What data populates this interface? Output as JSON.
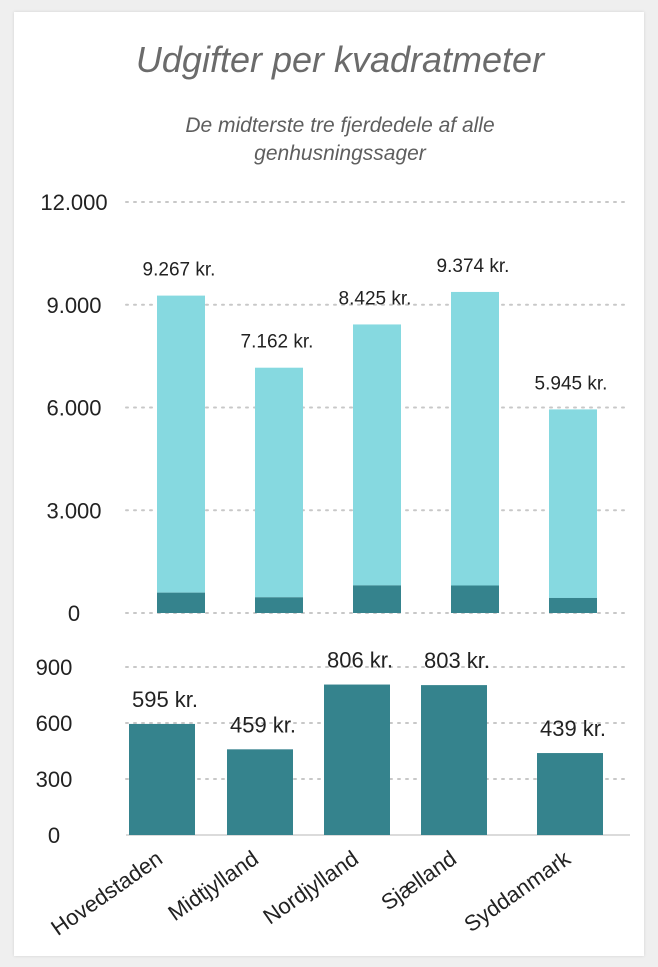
{
  "title": "Udgifter per kvadratmeter",
  "subtitle_line1": "De midterste tre fjerdedele af alle",
  "subtitle_line2": "genhusningssager",
  "colors": {
    "upper": "#86d9e0",
    "lower": "#35838d"
  },
  "chart_data": [
    {
      "type": "bar",
      "stacked": true,
      "title": "Udgifter per kvadratmeter",
      "subtitle": "De midterste tre fjerdedele af alle genhusningssager",
      "categories": [
        "Hovedstaden",
        "Midtjylland",
        "Nordjylland",
        "Sjælland",
        "Syddanmark"
      ],
      "series": [
        {
          "values": [
            595,
            459,
            806,
            803,
            439
          ]
        },
        {
          "values": [
            8672,
            6703,
            7619,
            8571,
            5506
          ]
        }
      ],
      "totals": [
        9267,
        7162,
        8425,
        9374,
        5945
      ],
      "data_labels": [
        "9.267 kr.",
        "7.162 kr.",
        "8.425 kr.",
        "9.374 kr.",
        "5.945 kr."
      ],
      "ylim": [
        0,
        12000
      ],
      "yticks": [
        0,
        3000,
        6000,
        9000,
        12000
      ],
      "ytick_labels": [
        "0",
        "3.000",
        "6.000",
        "9.000",
        "12.000"
      ],
      "grid": true
    },
    {
      "type": "bar",
      "categories": [
        "Hovedstaden",
        "Midtjylland",
        "Nordjylland",
        "Sjælland",
        "Syddanmark"
      ],
      "values": [
        595,
        459,
        806,
        803,
        439
      ],
      "data_labels": [
        "595 kr.",
        "459 kr.",
        "806 kr.",
        "803 kr.",
        "439 kr."
      ],
      "ylim": [
        0,
        900
      ],
      "yticks": [
        0,
        300,
        600,
        900
      ],
      "ytick_labels": [
        "0",
        "300",
        "600",
        "900"
      ],
      "grid": true
    }
  ]
}
